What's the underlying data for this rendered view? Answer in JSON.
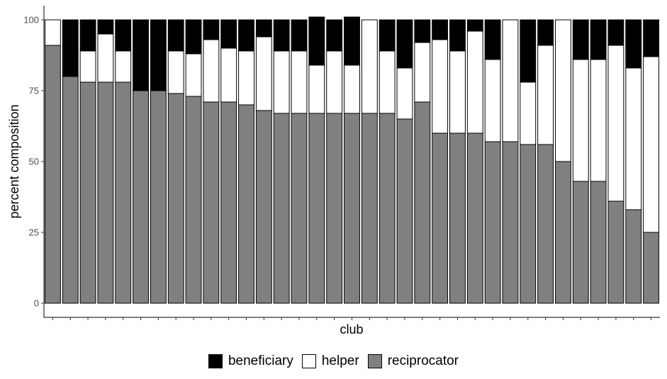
{
  "chart_data": {
    "type": "bar",
    "stacked": true,
    "xlabel": "club",
    "ylabel": "percent composition",
    "ylim": [
      0,
      100
    ],
    "yticks": [
      0,
      25,
      50,
      75,
      100
    ],
    "x_tick_labels_shown": false,
    "grid": false,
    "legend_position": "bottom",
    "series": [
      {
        "name": "reciprocator",
        "color": "#808080",
        "values": [
          91,
          80,
          78,
          78,
          78,
          75,
          75,
          74,
          73,
          71,
          71,
          70,
          68,
          67,
          67,
          67,
          67,
          67,
          67,
          67,
          65,
          71,
          60,
          60,
          60,
          57,
          57,
          56,
          56,
          50,
          43,
          43,
          36,
          33,
          25
        ]
      },
      {
        "name": "helper",
        "color": "#ffffff",
        "values": [
          9,
          0,
          11,
          17,
          11,
          0,
          0,
          15,
          15,
          22,
          19,
          19,
          26,
          22,
          22,
          17,
          22,
          17,
          33,
          22,
          18,
          21,
          33,
          29,
          36,
          29,
          43,
          22,
          35,
          50,
          43,
          43,
          55,
          50,
          62
        ]
      },
      {
        "name": "beneficiary",
        "color": "#000000",
        "values": [
          0,
          20,
          11,
          5,
          11,
          25,
          25,
          11,
          12,
          7,
          10,
          11,
          6,
          11,
          11,
          17,
          11,
          17,
          0,
          11,
          17,
          8,
          7,
          11,
          4,
          14,
          0,
          22,
          9,
          0,
          14,
          14,
          9,
          17,
          13
        ]
      }
    ]
  },
  "legend": {
    "items": [
      {
        "label": "beneficiary",
        "color": "#000000"
      },
      {
        "label": "helper",
        "color": "#ffffff"
      },
      {
        "label": "reciprocator",
        "color": "#808080"
      }
    ]
  }
}
